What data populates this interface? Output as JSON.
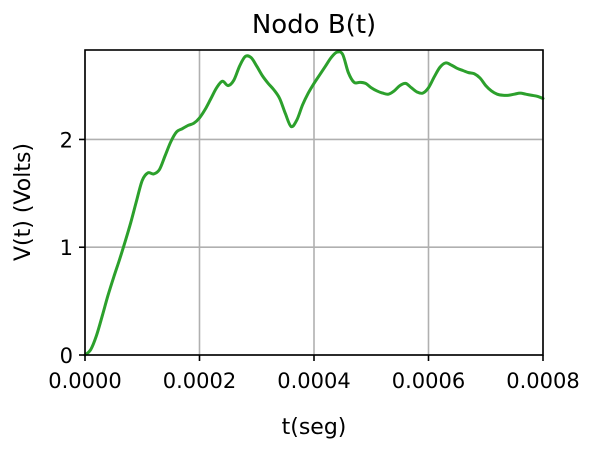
{
  "chart_data": {
    "type": "line",
    "title": "Nodo B(t)",
    "xlabel": "t(seg)",
    "ylabel": "V(t) (Volts)",
    "xlim": [
      0.0,
      0.0008
    ],
    "ylim": [
      0.0,
      2.83
    ],
    "x_ticks": [
      0.0,
      0.0002,
      0.0004,
      0.0006,
      0.0008
    ],
    "x_tick_labels": [
      "0.0000",
      "0.0002",
      "0.0004",
      "0.0006",
      "0.0008"
    ],
    "y_ticks": [
      0,
      1,
      2
    ],
    "y_tick_labels": [
      "0",
      "1",
      "2"
    ],
    "grid": true,
    "color": "#2ca02c",
    "series": [
      {
        "x": [
          0.0,
          1e-05,
          2e-05,
          3e-05,
          4e-05,
          5e-05,
          6e-05,
          7e-05,
          8e-05,
          9e-05,
          0.0001,
          0.00011,
          0.00012,
          0.00013,
          0.00014,
          0.00015,
          0.00016,
          0.00017,
          0.00018,
          0.00019,
          0.0002,
          0.00021,
          0.00022,
          0.00023,
          0.00024,
          0.00025,
          0.00026,
          0.00027,
          0.00028,
          0.00029,
          0.0003,
          0.00031,
          0.00032,
          0.00033,
          0.00034,
          0.00035,
          0.00036,
          0.00037,
          0.00038,
          0.00039,
          0.0004,
          0.00041,
          0.00042,
          0.00043,
          0.00044,
          0.00045,
          0.00046,
          0.00047,
          0.00048,
          0.00049,
          0.0005,
          0.00051,
          0.00052,
          0.00053,
          0.00054,
          0.00055,
          0.00056,
          0.00057,
          0.00058,
          0.00059,
          0.0006,
          0.00061,
          0.00062,
          0.00063,
          0.00064,
          0.00065,
          0.00066,
          0.00067,
          0.00068,
          0.00069,
          0.0007,
          0.00071,
          0.00072,
          0.00073,
          0.00074,
          0.00075,
          0.00076,
          0.00077,
          0.00078,
          0.00079,
          0.0008
        ],
        "values": [
          0.0,
          0.05,
          0.18,
          0.36,
          0.55,
          0.72,
          0.88,
          1.05,
          1.23,
          1.43,
          1.62,
          1.69,
          1.68,
          1.72,
          1.85,
          1.98,
          2.07,
          2.1,
          2.13,
          2.15,
          2.2,
          2.28,
          2.38,
          2.48,
          2.54,
          2.5,
          2.55,
          2.68,
          2.77,
          2.76,
          2.68,
          2.59,
          2.52,
          2.46,
          2.38,
          2.24,
          2.12,
          2.18,
          2.32,
          2.43,
          2.52,
          2.6,
          2.68,
          2.76,
          2.81,
          2.79,
          2.62,
          2.53,
          2.53,
          2.52,
          2.48,
          2.45,
          2.43,
          2.42,
          2.45,
          2.5,
          2.52,
          2.48,
          2.44,
          2.43,
          2.48,
          2.58,
          2.67,
          2.71,
          2.69,
          2.66,
          2.64,
          2.62,
          2.61,
          2.57,
          2.5,
          2.45,
          2.42,
          2.41,
          2.41,
          2.42,
          2.43,
          2.42,
          2.41,
          2.4,
          2.38
        ]
      }
    ]
  }
}
